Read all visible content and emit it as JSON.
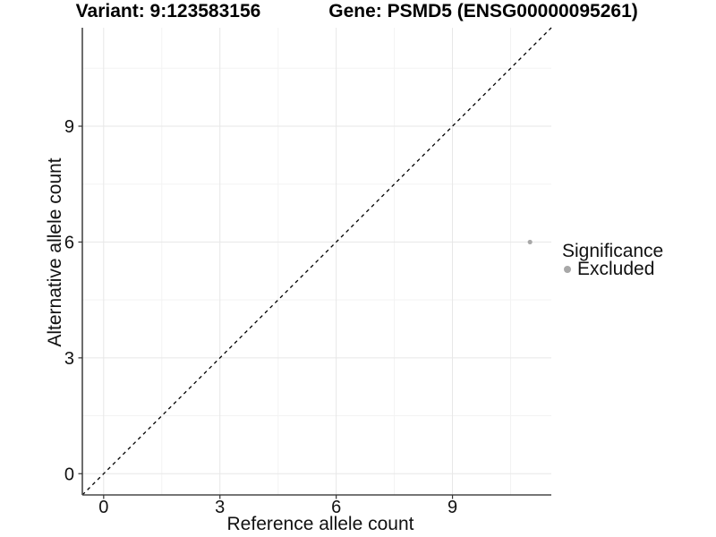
{
  "page": {
    "background": "#ffffff"
  },
  "chart_data": {
    "type": "scatter",
    "title_left": "Variant: 9:123583156",
    "title_right": "Gene: PSMD5 (ENSG00000095261)",
    "xlabel": "Reference allele count",
    "ylabel": "Alternative allele count",
    "x_ticks": [
      0,
      3,
      6,
      9
    ],
    "y_ticks": [
      0,
      3,
      6,
      9
    ],
    "x_minor_breaks": [
      1.5,
      4.5,
      7.5,
      10.5
    ],
    "y_minor_breaks": [
      1.5,
      4.5,
      7.5,
      10.5
    ],
    "xlim": [
      -0.55,
      11.55
    ],
    "ylim": [
      -0.55,
      11.55
    ],
    "grid": {
      "major_color": "#e7e7e7",
      "minor_color": "#f3f3f3",
      "on": true
    },
    "axis_line_color": "#484848",
    "tick_color": "#333333",
    "text_color": "#111111",
    "reference_line": {
      "type": "identity",
      "style": "dashed",
      "color": "#000000"
    },
    "series": [
      {
        "name": "Excluded",
        "color": "#a8a8a8",
        "points": [
          {
            "x": 11,
            "y": 6
          }
        ]
      }
    ],
    "legend": {
      "title": "Significance",
      "position": "right",
      "entries": [
        {
          "label": "Excluded",
          "color": "#a8a8a8"
        }
      ]
    }
  }
}
